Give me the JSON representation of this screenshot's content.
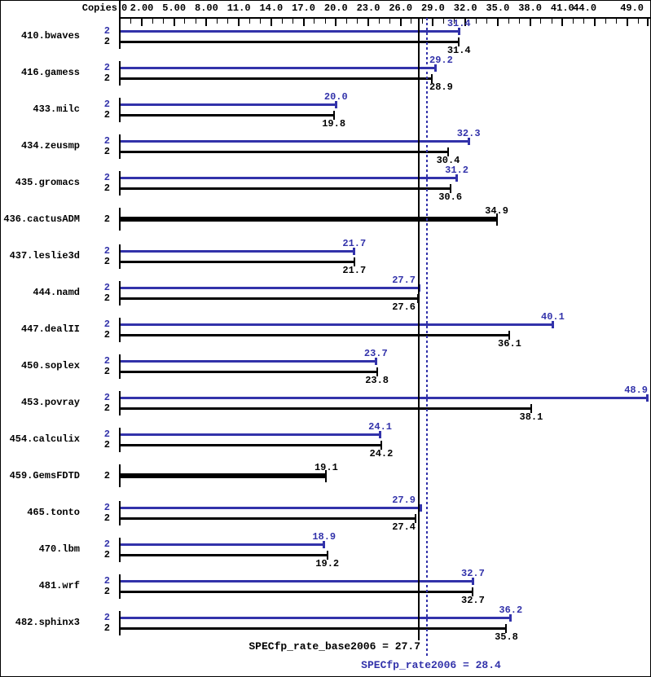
{
  "header": {
    "copies_label": "Copies"
  },
  "axis": {
    "min": 0,
    "max": 49,
    "origin_label": "0",
    "minor_step": 1,
    "major_ticks": [
      2,
      5,
      8,
      11,
      14,
      17,
      20,
      23,
      26,
      29,
      32,
      35,
      38,
      41,
      44,
      47
    ],
    "labels": [
      {
        "value": 2,
        "text": "2.00"
      },
      {
        "value": 5,
        "text": "5.00"
      },
      {
        "value": 8,
        "text": "8.00"
      },
      {
        "value": 11,
        "text": "11.0"
      },
      {
        "value": 14,
        "text": "14.0"
      },
      {
        "value": 17,
        "text": "17.0"
      },
      {
        "value": 20,
        "text": "20.0"
      },
      {
        "value": 23,
        "text": "23.0"
      },
      {
        "value": 26,
        "text": "26.0"
      },
      {
        "value": 29,
        "text": "29.0"
      },
      {
        "value": 32,
        "text": "32.0"
      },
      {
        "value": 35,
        "text": "35.0"
      },
      {
        "value": 38,
        "text": "38.0"
      },
      {
        "value": 41,
        "text": "41.0"
      },
      {
        "value": 44,
        "text": "44.0"
      }
    ],
    "end_label": {
      "value": 49,
      "text": "49.0"
    }
  },
  "colors": {
    "peak": "#3232aa",
    "base": "#000000",
    "background": "#ffffff"
  },
  "chart_data": {
    "type": "bar",
    "orientation": "horizontal",
    "xlim": [
      0,
      49
    ],
    "grid": false,
    "legend": "none",
    "copies_per_benchmark": 2,
    "benchmarks": [
      {
        "name": "410.bwaves",
        "copies": 2,
        "peak": 31.4,
        "peak_label": "31.4",
        "base": 31.4,
        "base_label": "31.4"
      },
      {
        "name": "416.gamess",
        "copies": 2,
        "peak": 29.2,
        "peak_label": "29.2",
        "base": 28.9,
        "base_label": "28.9"
      },
      {
        "name": "433.milc",
        "copies": 2,
        "peak": 20.0,
        "peak_label": "20.0",
        "base": 19.8,
        "base_label": "19.8"
      },
      {
        "name": "434.zeusmp",
        "copies": 2,
        "peak": 32.3,
        "peak_label": "32.3",
        "base": 30.4,
        "base_label": "30.4"
      },
      {
        "name": "435.gromacs",
        "copies": 2,
        "peak": 31.2,
        "peak_label": "31.2",
        "base": 30.6,
        "base_label": "30.6"
      },
      {
        "name": "436.cactusADM",
        "copies": 2,
        "peak": null,
        "peak_label": null,
        "base": 34.9,
        "base_label": "34.9"
      },
      {
        "name": "437.leslie3d",
        "copies": 2,
        "peak": 21.7,
        "peak_label": "21.7",
        "base": 21.7,
        "base_label": "21.7"
      },
      {
        "name": "444.namd",
        "copies": 2,
        "peak": 27.7,
        "peak_label": "27.7",
        "base": 27.6,
        "base_label": "27.6"
      },
      {
        "name": "447.dealII",
        "copies": 2,
        "peak": 40.1,
        "peak_label": "40.1",
        "base": 36.1,
        "base_label": "36.1"
      },
      {
        "name": "450.soplex",
        "copies": 2,
        "peak": 23.7,
        "peak_label": "23.7",
        "base": 23.8,
        "base_label": "23.8"
      },
      {
        "name": "453.povray",
        "copies": 2,
        "peak": 48.9,
        "peak_label": "48.9",
        "base": 38.1,
        "base_label": "38.1"
      },
      {
        "name": "454.calculix",
        "copies": 2,
        "peak": 24.1,
        "peak_label": "24.1",
        "base": 24.2,
        "base_label": "24.2"
      },
      {
        "name": "459.GemsFDTD",
        "copies": 2,
        "peak": null,
        "peak_label": null,
        "base": 19.1,
        "base_label": "19.1"
      },
      {
        "name": "465.tonto",
        "copies": 2,
        "peak": 27.9,
        "peak_label": "27.9",
        "base": 27.4,
        "base_label": "27.4"
      },
      {
        "name": "470.lbm",
        "copies": 2,
        "peak": 18.9,
        "peak_label": "18.9",
        "base": 19.2,
        "base_label": "19.2"
      },
      {
        "name": "481.wrf",
        "copies": 2,
        "peak": 32.7,
        "peak_label": "32.7",
        "base": 32.7,
        "base_label": "32.7"
      },
      {
        "name": "482.sphinx3",
        "copies": 2,
        "peak": 36.2,
        "peak_label": "36.2",
        "base": 35.8,
        "base_label": "35.8"
      }
    ],
    "reference_lines": [
      {
        "name": "base_mean",
        "value": 27.7,
        "style": "solid",
        "color": "#000000",
        "label": "SPECfp_rate_base2006 = 27.7"
      },
      {
        "name": "peak_mean",
        "value": 28.4,
        "style": "dotted",
        "color": "#3232aa",
        "label": "SPECfp_rate2006 = 28.4"
      }
    ]
  }
}
